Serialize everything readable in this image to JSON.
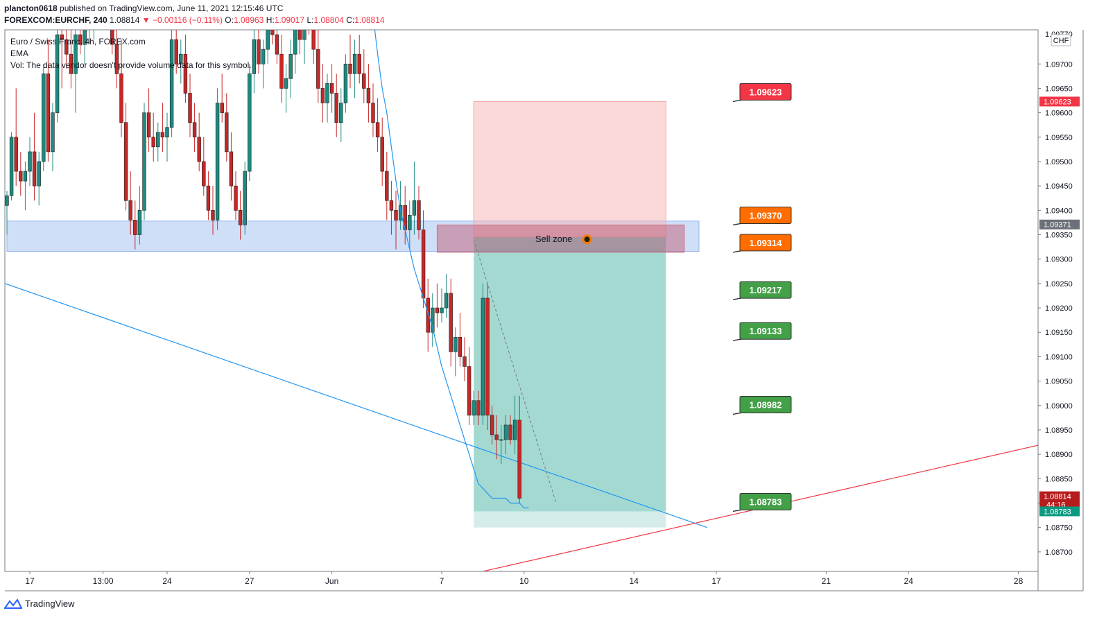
{
  "header": {
    "publisher": "plancton0618",
    "published_text": " published on TradingView.com, June 11, 2021 12:15:46 UTC",
    "symbol": "FOREXCOM:EURCHF, 240",
    "last_price": "1.08814",
    "change": "▼ −0.00116 (−0.11%)",
    "open_label": "O:",
    "open": "1.08963",
    "high_label": "H:",
    "high": "1.09017",
    "low_label": "L:",
    "low": "1.08804",
    "close_label": "C:",
    "close": "1.08814"
  },
  "legend": {
    "title": "Euro / Swiss Franc, 4h, FOREX.com",
    "ema": "EMA",
    "vol": "Vol: The data vendor doesn't provide volume data for this symbol."
  },
  "footer": {
    "brand": "TradingView"
  },
  "colors": {
    "up": "#26a69a",
    "down": "#ef5350",
    "up_candle": "#1f8a7f",
    "down_candle": "#c62828",
    "ema": "#2196f3",
    "support_zone": "#a9c4f2",
    "stop_zone": "#f8b4b4",
    "target_zone": "#66bfb3",
    "red_line": "#f23645",
    "blue_line": "#2196f3",
    "label_red": "#f23645",
    "label_orange": "#ff6d00",
    "label_green": "#43a047"
  },
  "chart_data": {
    "type": "candlestick",
    "currency": "CHF",
    "ylim": [
      1.0866,
      1.0977
    ],
    "price_ticks": [
      "1.09700",
      "1.09650",
      "1.09600",
      "1.09550",
      "1.09500",
      "1.09450",
      "1.09400",
      "1.09350",
      "1.09300",
      "1.09250",
      "1.09200",
      "1.09150",
      "1.09100",
      "1.09050",
      "1.09000",
      "1.08950",
      "1.08900",
      "1.08850",
      "1.08800",
      "1.08750",
      "1.08700"
    ],
    "partial_top_tick": "1.09770",
    "x_ticks": [
      {
        "label": "17",
        "i": 5
      },
      {
        "label": "13:00",
        "i": 21
      },
      {
        "label": "24",
        "i": 35
      },
      {
        "label": "27",
        "i": 53
      },
      {
        "label": "Jun",
        "i": 71
      },
      {
        "label": "7",
        "i": 95
      },
      {
        "label": "10",
        "i": 113
      },
      {
        "label": "14",
        "i": 137
      },
      {
        "label": "17",
        "i": 155
      },
      {
        "label": "21",
        "i": 179
      },
      {
        "label": "24",
        "i": 197
      },
      {
        "label": "28",
        "i": 221
      }
    ],
    "candles": [
      [
        1.0941,
        1.0944,
        1.0935,
        1.0943
      ],
      [
        1.0943,
        1.0956,
        1.0942,
        1.0955
      ],
      [
        1.0955,
        1.0965,
        1.0945,
        1.0948
      ],
      [
        1.0948,
        1.0952,
        1.0943,
        1.0946
      ],
      [
        1.0946,
        1.095,
        1.094,
        1.0948
      ],
      [
        1.0948,
        1.0955,
        1.0945,
        1.0952
      ],
      [
        1.0952,
        1.096,
        1.0942,
        1.0945
      ],
      [
        1.0945,
        1.0952,
        1.0941,
        1.095
      ],
      [
        1.095,
        1.097,
        1.0948,
        1.0968
      ],
      [
        1.0968,
        1.0975,
        1.095,
        1.0952
      ],
      [
        1.0952,
        1.0962,
        1.0948,
        1.096
      ],
      [
        1.096,
        1.0978,
        1.0958,
        1.0976
      ],
      [
        1.0976,
        1.0978,
        1.0965,
        1.0975
      ],
      [
        1.0975,
        1.0978,
        1.0969,
        1.0972
      ],
      [
        1.0972,
        1.0978,
        1.0965,
        1.0968
      ],
      [
        1.0968,
        1.0978,
        1.096,
        1.0976
      ],
      [
        1.0976,
        1.0982,
        1.0972,
        1.0974
      ],
      [
        1.0974,
        1.098,
        1.097,
        1.0978
      ],
      [
        1.0978,
        1.0985,
        1.0974,
        1.098
      ],
      [
        1.098,
        1.0985,
        1.0975,
        1.0982
      ],
      [
        1.0982,
        1.099,
        1.0978,
        1.0988
      ],
      [
        1.0988,
        1.0992,
        1.0982,
        1.0985
      ],
      [
        1.0985,
        1.099,
        1.0978,
        1.098
      ],
      [
        1.098,
        1.0985,
        1.0972,
        1.0974
      ],
      [
        1.0974,
        1.0978,
        1.0965,
        1.0968
      ],
      [
        1.0968,
        1.0975,
        1.0955,
        1.0958
      ],
      [
        1.0958,
        1.0962,
        1.094,
        1.0942
      ],
      [
        1.0942,
        1.0948,
        1.0935,
        1.0938
      ],
      [
        1.0938,
        1.0942,
        1.0932,
        1.0935
      ],
      [
        1.0935,
        1.0945,
        1.0933,
        1.094
      ],
      [
        1.094,
        1.0962,
        1.0938,
        1.096
      ],
      [
        1.096,
        1.0965,
        1.0952,
        1.0955
      ],
      [
        1.0955,
        1.096,
        1.095,
        1.0953
      ],
      [
        1.0953,
        1.0958,
        1.095,
        1.0956
      ],
      [
        1.0956,
        1.0962,
        1.0952,
        1.0955
      ],
      [
        1.0955,
        1.096,
        1.095,
        1.0957
      ],
      [
        1.0957,
        1.0978,
        1.0955,
        1.0975
      ],
      [
        1.0975,
        1.098,
        1.0968,
        1.097
      ],
      [
        1.097,
        1.0975,
        1.0966,
        1.0972
      ],
      [
        1.0972,
        1.0976,
        1.0962,
        1.0964
      ],
      [
        1.0964,
        1.0968,
        1.0955,
        1.0958
      ],
      [
        1.0958,
        1.0962,
        1.0952,
        1.0955
      ],
      [
        1.0955,
        1.096,
        1.0948,
        1.095
      ],
      [
        1.095,
        1.0955,
        1.0943,
        1.0945
      ],
      [
        1.0945,
        1.0948,
        1.0938,
        1.094
      ],
      [
        1.094,
        1.0945,
        1.0935,
        1.0938
      ],
      [
        1.0938,
        1.0965,
        1.0936,
        1.0962
      ],
      [
        1.0962,
        1.0968,
        1.0958,
        1.096
      ],
      [
        1.096,
        1.0964,
        1.095,
        1.0952
      ],
      [
        1.0952,
        1.0956,
        1.0942,
        1.0945
      ],
      [
        1.0945,
        1.0948,
        1.0938,
        1.094
      ],
      [
        1.094,
        1.0944,
        1.0934,
        1.0937
      ],
      [
        1.0937,
        1.095,
        1.0935,
        1.0948
      ],
      [
        1.0948,
        1.097,
        1.0946,
        1.0968
      ],
      [
        1.0968,
        1.0978,
        1.0964,
        1.0975
      ],
      [
        1.0975,
        1.0978,
        1.0968,
        1.097
      ],
      [
        1.097,
        1.0975,
        1.0965,
        1.0973
      ],
      [
        1.0973,
        1.0982,
        1.097,
        1.0978
      ],
      [
        1.0978,
        1.0985,
        1.0974,
        1.0976
      ],
      [
        1.0976,
        1.098,
        1.097,
        1.0972
      ],
      [
        1.0972,
        1.0976,
        1.0962,
        1.0965
      ],
      [
        1.0965,
        1.097,
        1.096,
        1.0967
      ],
      [
        1.0967,
        1.0975,
        1.0963,
        1.0972
      ],
      [
        1.0972,
        1.098,
        1.0968,
        1.0978
      ],
      [
        1.0978,
        1.0982,
        1.0972,
        1.0975
      ],
      [
        1.0975,
        1.0982,
        1.097,
        1.098
      ],
      [
        1.098,
        1.0986,
        1.0976,
        1.0978
      ],
      [
        1.0978,
        1.0983,
        1.097,
        1.0973
      ],
      [
        1.0973,
        1.0978,
        1.0962,
        1.0965
      ],
      [
        1.0965,
        1.097,
        1.0958,
        1.0962
      ],
      [
        1.0962,
        1.0968,
        1.0958,
        1.0966
      ],
      [
        1.0966,
        1.097,
        1.096,
        1.0964
      ],
      [
        1.0964,
        1.0968,
        1.0955,
        1.0958
      ],
      [
        1.0958,
        1.0965,
        1.0954,
        1.0962
      ],
      [
        1.0962,
        1.0972,
        1.096,
        1.097
      ],
      [
        1.097,
        1.0976,
        1.0965,
        1.0968
      ],
      [
        1.0968,
        1.0975,
        1.0963,
        1.0972
      ],
      [
        1.0972,
        1.0976,
        1.0966,
        1.0968
      ],
      [
        1.0968,
        1.0973,
        1.0962,
        1.0965
      ],
      [
        1.0965,
        1.097,
        1.0958,
        1.0962
      ],
      [
        1.0962,
        1.0966,
        1.0955,
        1.0958
      ],
      [
        1.0958,
        1.0963,
        1.0952,
        1.0955
      ],
      [
        1.0955,
        1.0959,
        1.0945,
        1.0948
      ],
      [
        1.0948,
        1.0952,
        1.0938,
        1.0942
      ],
      [
        1.0942,
        1.0946,
        1.0935,
        1.094
      ],
      [
        1.094,
        1.0944,
        1.0932,
        1.0938
      ],
      [
        1.0938,
        1.0946,
        1.0936,
        1.0941
      ],
      [
        1.0941,
        1.0945,
        1.0933,
        1.0936
      ],
      [
        1.0936,
        1.0942,
        1.0932,
        1.0939
      ],
      [
        1.0939,
        1.095,
        1.0935,
        1.0942
      ],
      [
        1.0942,
        1.0945,
        1.0934,
        1.0936
      ],
      [
        1.0936,
        1.094,
        1.092,
        1.0922
      ],
      [
        1.0922,
        1.0926,
        1.0911,
        1.0915
      ],
      [
        1.0915,
        1.0923,
        1.0912,
        1.092
      ],
      [
        1.092,
        1.0925,
        1.0916,
        1.0919
      ],
      [
        1.0919,
        1.0924,
        1.0917,
        1.092
      ],
      [
        1.092,
        1.0927,
        1.0918,
        1.0923
      ],
      [
        1.0923,
        1.0926,
        1.0908,
        1.0911
      ],
      [
        1.0911,
        1.0916,
        1.0906,
        1.0914
      ],
      [
        1.0914,
        1.0919,
        1.0908,
        1.091
      ],
      [
        1.091,
        1.0914,
        1.0905,
        1.0908
      ],
      [
        1.0908,
        1.0912,
        1.0896,
        1.0898
      ],
      [
        1.0898,
        1.0903,
        1.0896,
        1.0901
      ],
      [
        1.0901,
        1.0903,
        1.0896,
        1.0898
      ],
      [
        1.0898,
        1.0925,
        1.0896,
        1.0922
      ],
      [
        1.0922,
        1.0925,
        1.0895,
        1.0898
      ],
      [
        1.0898,
        1.09,
        1.0892,
        1.0894
      ],
      [
        1.0894,
        1.0898,
        1.0889,
        1.0893
      ],
      [
        1.0893,
        1.0896,
        1.0888,
        1.0893
      ],
      [
        1.0893,
        1.0898,
        1.089,
        1.0896
      ],
      [
        1.0896,
        1.0898,
        1.0892,
        1.0893
      ],
      [
        1.0893,
        1.0902,
        1.089,
        1.0897
      ],
      [
        1.0897,
        1.0902,
        1.088,
        1.0881
      ]
    ],
    "ema_first_index": 78,
    "ema": [
      1.0988,
      1.0986,
      1.098,
      1.0972,
      1.0965,
      1.096,
      1.0953,
      1.0946,
      1.094,
      1.0936,
      1.0932,
      1.0928,
      1.0925,
      1.0922,
      1.0919,
      1.0916,
      1.0912,
      1.0908,
      1.0905,
      1.0902,
      1.0899,
      1.0896,
      1.0893,
      1.089,
      1.0887,
      1.0884,
      1.0883,
      1.0882,
      1.0881,
      1.0881,
      1.0881,
      1.0881,
      1.088,
      1.088,
      1.088,
      1.0879,
      1.0879
    ],
    "support_zone": {
      "from_i": 0,
      "to_i": 150,
      "y_top": 1.09378,
      "y_bottom": 1.09316
    },
    "sell_zone": {
      "label": "Sell zone",
      "from_i": 94,
      "to_i": 148,
      "y_top": 1.0937,
      "y_bottom": 1.09314
    },
    "position": {
      "from_i": 102,
      "to_i": 144,
      "stop": 1.09623,
      "entry": 1.09345,
      "target": 1.08783,
      "target_low": 1.0875
    },
    "trendline_blue": {
      "x1_i": 0,
      "y1": 1.0925,
      "x2_i": 153,
      "y2": 1.0875
    },
    "trendline_red": {
      "x1_i": 104,
      "y1": 1.0866,
      "x2_i": 226,
      "y2": 1.0892
    },
    "price_labels": [
      {
        "value": "1.09623",
        "color": "red",
        "y": 1.09623
      },
      {
        "value": "1.09370",
        "color": "orange",
        "y": 1.0937
      },
      {
        "value": "1.09314",
        "color": "orange",
        "y": 1.09314
      },
      {
        "value": "1.09217",
        "color": "green",
        "y": 1.09217
      },
      {
        "value": "1.09133",
        "color": "green",
        "y": 1.09133
      },
      {
        "value": "1.08982",
        "color": "green",
        "y": 1.08982
      },
      {
        "value": "1.08783",
        "color": "green",
        "y": 1.08783
      }
    ],
    "axis_badges": [
      {
        "text": "1.09623",
        "y": 1.09623,
        "bg": "#f23645"
      },
      {
        "text": "1.09371",
        "y": 1.09371,
        "bg": "#6b7079"
      },
      {
        "text": "1.08814",
        "sub": "44:16",
        "y": 1.08814,
        "bg": "#b71c1c"
      },
      {
        "text": "1.08783",
        "y": 1.08783,
        "bg": "#0b9981"
      }
    ]
  }
}
